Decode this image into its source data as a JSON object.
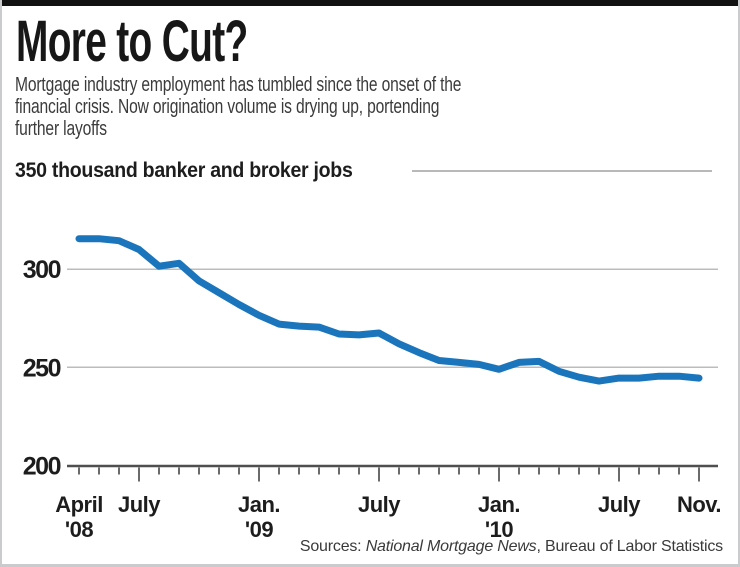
{
  "header": {
    "title": "More to Cut?",
    "subtitle_lines": [
      "Mortgage industry employment has tumbled since the onset of the",
      "financial crisis. Now origination volume is drying up, portending",
      "further layoffs"
    ],
    "axis_unit_label": "350 thousand banker and broker jobs"
  },
  "chart_data": {
    "type": "line",
    "title": "More to Cut?",
    "ylabel": "thousand banker and broker jobs",
    "ylim": [
      200,
      350
    ],
    "yticks": [
      200,
      250,
      300,
      350
    ],
    "ytick_axis_labels": [
      300,
      250,
      200
    ],
    "gridline_values": [
      300,
      250
    ],
    "grid": "horizontal-only",
    "legend": "none",
    "line_color": "#1b75bc",
    "gridline_color": "#bcbcbc",
    "axis_color": "#4f4f4f",
    "tick_color": "#6a6a6a",
    "label_color": "#1d1d1d",
    "x": [
      "Apr '08",
      "May '08",
      "Jun '08",
      "Jul '08",
      "Aug '08",
      "Sep '08",
      "Oct '08",
      "Nov '08",
      "Dec '08",
      "Jan '09",
      "Feb '09",
      "Mar '09",
      "Apr '09",
      "May '09",
      "Jun '09",
      "Jul '09",
      "Aug '09",
      "Sep '09",
      "Oct '09",
      "Nov '09",
      "Dec '09",
      "Jan '10",
      "Feb '10",
      "Mar '10",
      "Apr '10",
      "May '10",
      "Jun '10",
      "Jul '10",
      "Aug '10",
      "Sep '10",
      "Oct '10",
      "Nov '10"
    ],
    "values": [
      315.5,
      315.5,
      314.5,
      310,
      301.5,
      303,
      294,
      288,
      282,
      276.5,
      272,
      271,
      270.5,
      267,
      266.5,
      267.5,
      262,
      257.5,
      253.5,
      252.5,
      251.5,
      249,
      252.5,
      253,
      248,
      245,
      243,
      244.5,
      244.5,
      245.5,
      245.5,
      244.5
    ],
    "x_axis_labels": [
      {
        "month_index": 0,
        "lines": [
          "April",
          "'08"
        ]
      },
      {
        "month_index": 3,
        "lines": [
          "July"
        ]
      },
      {
        "month_index": 9,
        "lines": [
          "Jan.",
          "'09"
        ]
      },
      {
        "month_index": 15,
        "lines": [
          "July"
        ]
      },
      {
        "month_index": 21,
        "lines": [
          "Jan.",
          "'10"
        ]
      },
      {
        "month_index": 27,
        "lines": [
          "July"
        ]
      },
      {
        "month_index": 31,
        "lines": [
          "Nov."
        ]
      }
    ],
    "major_tick_months": [
      3,
      9,
      15,
      21,
      27,
      31
    ]
  },
  "source": {
    "prefix": "Sources: ",
    "italic": "National Mortgage News",
    "suffix": ", Bureau of Labor Statistics"
  }
}
